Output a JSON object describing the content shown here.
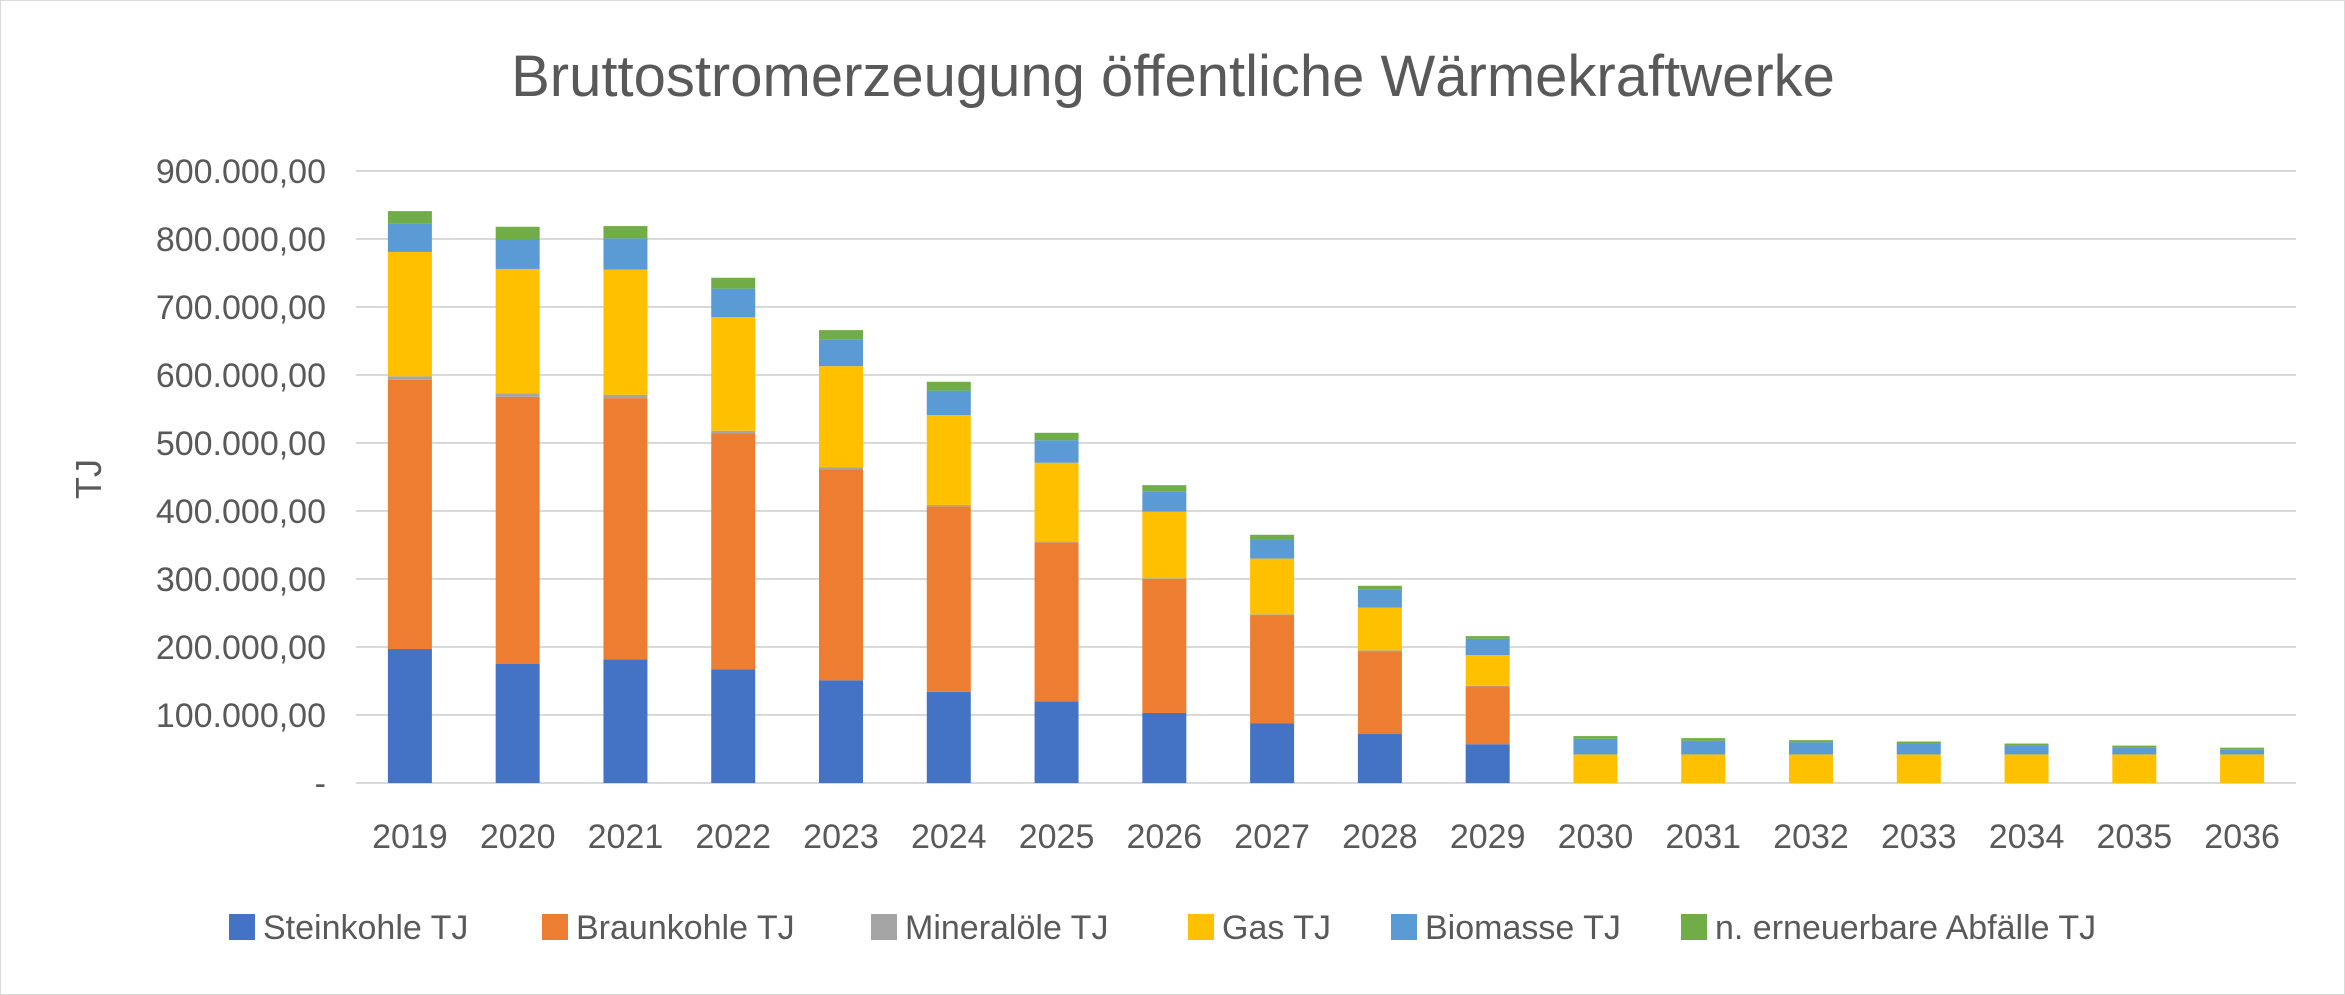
{
  "chart_data": {
    "type": "bar",
    "stacked": true,
    "title": "Bruttostromerzeugung  öffentliche Wärmekraftwerke",
    "ylabel": "TJ",
    "xlabel": "",
    "ylim": [
      0,
      900000
    ],
    "y_ticks": [
      {
        "value": 0,
        "label": "-"
      },
      {
        "value": 100000,
        "label": "100.000,00"
      },
      {
        "value": 200000,
        "label": "200.000,00"
      },
      {
        "value": 300000,
        "label": "300.000,00"
      },
      {
        "value": 400000,
        "label": "400.000,00"
      },
      {
        "value": 500000,
        "label": "500.000,00"
      },
      {
        "value": 600000,
        "label": "600.000,00"
      },
      {
        "value": 700000,
        "label": "700.000,00"
      },
      {
        "value": 800000,
        "label": "800.000,00"
      },
      {
        "value": 900000,
        "label": "900.000,00"
      }
    ],
    "grid": true,
    "legend_position": "bottom",
    "categories": [
      "2019",
      "2020",
      "2021",
      "2022",
      "2023",
      "2024",
      "2025",
      "2026",
      "2027",
      "2028",
      "2029",
      "2030",
      "2031",
      "2032",
      "2033",
      "2034",
      "2035",
      "2036"
    ],
    "series": [
      {
        "name": "Steinkohle TJ",
        "color": "#4472C4",
        "values": [
          197000,
          175000,
          182000,
          167000,
          151000,
          134000,
          120000,
          103000,
          88000,
          72000,
          57000,
          0,
          0,
          0,
          0,
          0,
          0,
          0
        ]
      },
      {
        "name": "Braunkohle TJ",
        "color": "#ED7D31",
        "values": [
          396000,
          393000,
          384000,
          347000,
          310000,
          273000,
          234000,
          197000,
          159000,
          122000,
          85000,
          0,
          0,
          0,
          0,
          0,
          0,
          0
        ]
      },
      {
        "name": "Mineralöle TJ",
        "color": "#A5A5A5",
        "values": [
          5000,
          5000,
          5000,
          4000,
          3000,
          2000,
          1000,
          1000,
          1000,
          1000,
          1000,
          0,
          0,
          0,
          0,
          0,
          0,
          0
        ]
      },
      {
        "name": "Gas TJ",
        "color": "#FFC000",
        "values": [
          183000,
          183000,
          184000,
          167000,
          149000,
          132000,
          116000,
          98000,
          82000,
          63000,
          45000,
          42000,
          42000,
          42000,
          42000,
          42000,
          42000,
          42000
        ]
      },
      {
        "name": "Biomasse TJ",
        "color": "#5B9BD5",
        "values": [
          42000,
          44000,
          46000,
          42000,
          39000,
          36000,
          33000,
          30000,
          28000,
          27000,
          24000,
          23000,
          20000,
          18000,
          16000,
          13000,
          10000,
          7000
        ]
      },
      {
        "name": "n. erneuerbare Abfälle TJ",
        "color": "#70AD47",
        "values": [
          18000,
          18000,
          18000,
          16000,
          14000,
          13000,
          11000,
          9000,
          7000,
          5000,
          4000,
          4000,
          4000,
          3000,
          3000,
          3000,
          3000,
          3000
        ]
      }
    ]
  }
}
